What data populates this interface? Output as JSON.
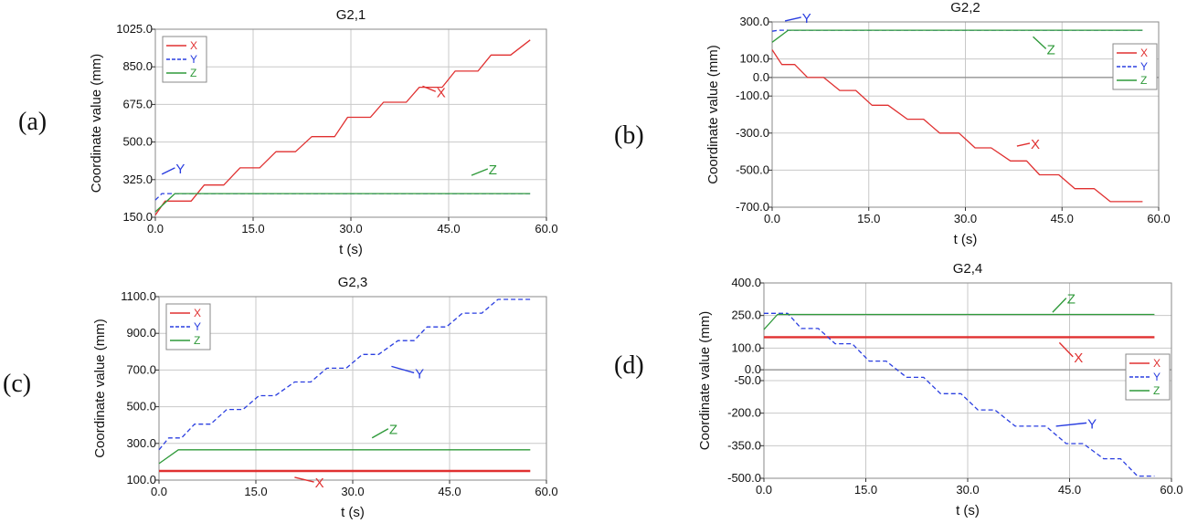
{
  "colors": {
    "x": "#e03030",
    "y": "#2a3ee0",
    "z": "#2f9a3a",
    "grid": "#c8c8c8",
    "zero": "#8a8a8a",
    "frame": "#8a8a8a"
  },
  "chart_data": [
    {
      "id": "a",
      "panel_label": "(a)",
      "type": "line",
      "title": "G2,1",
      "xlabel": "t (s)",
      "ylabel": "Coordinate value (mm)",
      "xlim": [
        0,
        60
      ],
      "ylim": [
        150,
        1025
      ],
      "xticks": [
        0,
        15,
        30,
        45,
        60
      ],
      "xtick_labels": [
        "0.0",
        "15.0",
        "30.0",
        "45.0",
        "60.0"
      ],
      "yticks": [
        150,
        325,
        500,
        675,
        850,
        1025
      ],
      "ytick_labels": [
        "150.0",
        "325.0",
        "500.0",
        "675.0",
        "850.0",
        "1025.0"
      ],
      "grid": true,
      "legend": {
        "position": "top-left",
        "entries": [
          "X",
          "Y",
          "Z"
        ]
      },
      "series": [
        {
          "name": "X",
          "style": "solid",
          "color": "x",
          "x": [
            0,
            1.5,
            5.5,
            7.5,
            10.5,
            13,
            16,
            18.5,
            21.5,
            24,
            27.5,
            29.5,
            33,
            35,
            38.5,
            40.5,
            44,
            46,
            49.5,
            51.5,
            54.5,
            57.5
          ],
          "y": [
            160,
            225,
            225,
            300,
            300,
            380,
            380,
            455,
            455,
            525,
            525,
            615,
            615,
            685,
            685,
            755,
            755,
            830,
            830,
            905,
            905,
            975
          ]
        },
        {
          "name": "Y",
          "style": "dashed",
          "color": "y",
          "x": [
            0,
            1,
            57.5
          ],
          "y": [
            230,
            260,
            260
          ]
        },
        {
          "name": "Z",
          "style": "solid",
          "color": "z",
          "x": [
            0,
            3,
            57.5
          ],
          "y": [
            175,
            260,
            260
          ]
        }
      ],
      "annotations": [
        {
          "text": "X",
          "series": "X",
          "at": [
            43,
            735
          ],
          "from": [
            41,
            760
          ]
        },
        {
          "text": "Y",
          "series": "Y",
          "at": [
            3,
            380
          ],
          "from": [
            1,
            350
          ]
        },
        {
          "text": "Z",
          "series": "Z",
          "at": [
            51,
            375
          ],
          "from": [
            48.5,
            345
          ]
        }
      ]
    },
    {
      "id": "b",
      "panel_label": "(b)",
      "type": "line",
      "title": "G2,2",
      "xlabel": "t (s)",
      "ylabel": "Coordinate value (mm)",
      "xlim": [
        0,
        60
      ],
      "ylim": [
        -700,
        300
      ],
      "xticks": [
        0,
        15,
        30,
        45,
        60
      ],
      "xtick_labels": [
        "0.0",
        "15.0",
        "30.0",
        "45.0",
        "60.0"
      ],
      "yticks": [
        -700,
        -500,
        -300,
        -100,
        0,
        100,
        300
      ],
      "ytick_labels": [
        "-700.0",
        "-500.0",
        "-300.0",
        "-100.0",
        "0.0",
        "100.0",
        "300.0"
      ],
      "grid": true,
      "zero_line": true,
      "legend": {
        "position": "middle-right",
        "entries": [
          "X",
          "Y",
          "Z"
        ]
      },
      "series": [
        {
          "name": "X",
          "style": "solid",
          "color": "x",
          "x": [
            0,
            1.5,
            3.5,
            5.5,
            8,
            10.5,
            13,
            15.5,
            18,
            21,
            23.5,
            26,
            29,
            31.5,
            34,
            37,
            39.5,
            41.5,
            44.5,
            47,
            50,
            52.5,
            55,
            57.5
          ],
          "y": [
            150,
            70,
            70,
            0,
            0,
            -70,
            -70,
            -150,
            -150,
            -225,
            -225,
            -300,
            -300,
            -380,
            -380,
            -450,
            -450,
            -525,
            -525,
            -600,
            -600,
            -670,
            -670,
            -670
          ]
        },
        {
          "name": "Y",
          "style": "dashed",
          "color": "y",
          "x": [
            0,
            1,
            57.5
          ],
          "y": [
            250,
            255,
            255
          ]
        },
        {
          "name": "Z",
          "style": "solid",
          "color": "z",
          "x": [
            0,
            2.5,
            57.5
          ],
          "y": [
            190,
            255,
            255
          ]
        }
      ],
      "annotations": [
        {
          "text": "X",
          "series": "X",
          "at": [
            40,
            -355
          ],
          "from": [
            38,
            -370
          ]
        },
        {
          "text": "Y",
          "series": "Y",
          "at": [
            4.5,
            325
          ],
          "from": [
            2,
            305
          ]
        },
        {
          "text": "Z",
          "series": "Z",
          "at": [
            42.5,
            155
          ],
          "from": [
            40.5,
            220
          ]
        }
      ]
    },
    {
      "id": "c",
      "panel_label": "(c)",
      "type": "line",
      "title": "G2,3",
      "xlabel": "t (s)",
      "ylabel": "Coordinate value (mm)",
      "xlim": [
        0,
        60
      ],
      "ylim": [
        100,
        1100
      ],
      "xticks": [
        0,
        15,
        30,
        45,
        60
      ],
      "xtick_labels": [
        "0.0",
        "15.0",
        "30.0",
        "45.0",
        "60.0"
      ],
      "yticks": [
        100,
        300,
        500,
        700,
        900,
        1100
      ],
      "ytick_labels": [
        "100.0",
        "300.0",
        "500.0",
        "700.0",
        "900.0",
        "1100.0"
      ],
      "grid": true,
      "legend": {
        "position": "top-left",
        "entries": [
          "X",
          "Y",
          "Z"
        ]
      },
      "series": [
        {
          "name": "X",
          "style": "solid",
          "color": "x",
          "x": [
            0,
            57.5
          ],
          "y": [
            150,
            150
          ]
        },
        {
          "name": "Y",
          "style": "dashed",
          "color": "y",
          "x": [
            0,
            1.5,
            3.5,
            5.5,
            8,
            10.5,
            13,
            15.5,
            18,
            21,
            23.5,
            26,
            29,
            31.5,
            34,
            37,
            39.5,
            41.5,
            44.5,
            47,
            50,
            52.5,
            55,
            57.5
          ],
          "y": [
            265,
            330,
            330,
            405,
            405,
            485,
            485,
            560,
            560,
            635,
            635,
            710,
            710,
            785,
            785,
            860,
            860,
            935,
            935,
            1010,
            1010,
            1085,
            1085,
            1085
          ]
        },
        {
          "name": "Z",
          "style": "solid",
          "color": "z",
          "x": [
            0,
            3,
            57.5
          ],
          "y": [
            190,
            265,
            265
          ]
        }
      ],
      "annotations": [
        {
          "text": "X",
          "series": "X",
          "at": [
            24,
            90
          ],
          "from": [
            21,
            115
          ]
        },
        {
          "text": "Y",
          "series": "Y",
          "at": [
            39.5,
            685
          ],
          "from": [
            36,
            720
          ]
        },
        {
          "text": "Z",
          "series": "Z",
          "at": [
            35.5,
            380
          ],
          "from": [
            33,
            330
          ]
        }
      ]
    },
    {
      "id": "d",
      "panel_label": "(d)",
      "type": "line",
      "title": "G2,4",
      "xlabel": "t (s)",
      "ylabel": "Coordinate value (mm)",
      "xlim": [
        0,
        60
      ],
      "ylim": [
        -500,
        400
      ],
      "xticks": [
        0,
        15,
        30,
        45,
        60
      ],
      "xtick_labels": [
        "0.0",
        "15.0",
        "30.0",
        "45.0",
        "60.0"
      ],
      "yticks": [
        -500,
        -350,
        -200,
        -50,
        0,
        100,
        250,
        400
      ],
      "ytick_labels": [
        "-500.0",
        "-350.0",
        "-200.0",
        "-50.0",
        "0.0",
        "100.0",
        "250.0",
        "400.0"
      ],
      "grid": true,
      "zero_line": true,
      "legend": {
        "position": "middle-right",
        "entries": [
          "X",
          "Y",
          "Z"
        ]
      },
      "series": [
        {
          "name": "X",
          "style": "solid",
          "color": "x",
          "x": [
            0,
            57.5
          ],
          "y": [
            150,
            150
          ]
        },
        {
          "name": "Y",
          "style": "dashed",
          "color": "y",
          "x": [
            0,
            3.5,
            5.5,
            8,
            10.5,
            13,
            15.5,
            18,
            21,
            23.5,
            26,
            29,
            31.5,
            34,
            37,
            39.5,
            41.5,
            44.5,
            47,
            50,
            52.5,
            55,
            57.5
          ],
          "y": [
            260,
            260,
            190,
            190,
            120,
            120,
            40,
            40,
            -35,
            -35,
            -110,
            -110,
            -185,
            -185,
            -260,
            -260,
            -260,
            -340,
            -340,
            -410,
            -410,
            -490,
            -490
          ]
        },
        {
          "name": "Z",
          "style": "solid",
          "color": "z",
          "x": [
            0,
            2,
            57.5
          ],
          "y": [
            185,
            255,
            255
          ]
        }
      ],
      "annotations": [
        {
          "text": "X",
          "series": "X",
          "at": [
            45.5,
            60
          ],
          "from": [
            43.5,
            125
          ]
        },
        {
          "text": "Y",
          "series": "Y",
          "at": [
            47.5,
            -245
          ],
          "from": [
            43,
            -260
          ]
        },
        {
          "text": "Z",
          "series": "Z",
          "at": [
            44.5,
            330
          ],
          "from": [
            42.5,
            265
          ]
        }
      ]
    }
  ]
}
